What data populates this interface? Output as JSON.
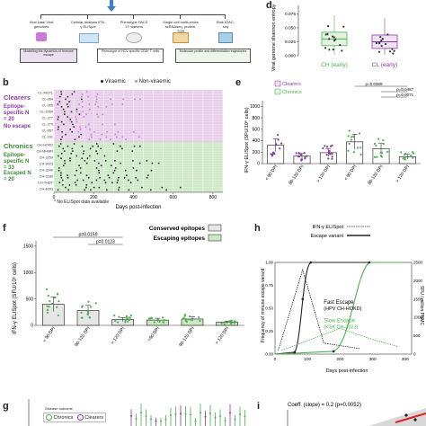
{
  "panel_letters": {
    "b": "b",
    "d": "d",
    "e": "e",
    "f": "f",
    "g": "g",
    "h": "h",
    "i": "i"
  },
  "schematic": {
    "steps": [
      "Viral load/ Viral genomes",
      "Cellular analysis IFN-γ ELISpot",
      "Phenotype FACS 17 markers",
      "Single cell multi-omics scRNAseq, protein, TCR",
      "Bulk ATAC-seq"
    ],
    "boxes": [
      "Modelling the dynamics of Immune escape",
      "Phenotype of HCV-specific CD8+ T cells",
      "Molecular profile and differentiation trajectories"
    ]
  },
  "panel_b": {
    "legend": [
      "Viraemic",
      "Non-viraemic"
    ],
    "groups": {
      "clearers": "Clearers",
      "clearers_spec": "Epitope-specific N = 20",
      "clearers_esc": "No escape",
      "chronics": "Chronics",
      "chronics_spec": "Epitope-specific N = 33",
      "chronics_esc": "Escaped N = 20"
    },
    "cl_rows": [
      "CL-MCPL",
      "CL-064",
      "CL-065",
      "CL-2069",
      "CL-277",
      "CL-279",
      "CL-057",
      "CL-161"
    ],
    "ch_rows": [
      "CH-HOKD",
      "CH-MHMR",
      "CH-3259",
      "CH-3023",
      "CH-3240",
      "CH-3180",
      "CH-THDT",
      "CH-4093"
    ],
    "x_ticks": [
      "0",
      "200",
      "400",
      "600",
      "800"
    ],
    "xlabel": "Days post-infection",
    "footnote": "* No ELISpot data available"
  },
  "colors": {
    "purple": "#8a3aa0",
    "green": "#4caf50",
    "light_green": "#cde8c4",
    "light_purple": "#e7cdea",
    "gray_bar": "#e6e6e6"
  },
  "chart_data": [
    {
      "panel": "d",
      "type": "box",
      "ylabel": "Viral genome shannon entropy",
      "categories": [
        "CH (early)",
        "CL (early)"
      ],
      "y_ticks": [
        "0.000",
        "0.025",
        "0.050",
        "0.075"
      ],
      "ylim": [
        0,
        0.09
      ],
      "medians": [
        0.03,
        0.025
      ]
    },
    {
      "panel": "e",
      "type": "bar",
      "ylabel": "IFN-γ ELISpot (SFU/10⁶ cells)",
      "legend": [
        "Clearers",
        "Chronics"
      ],
      "categories": [
        "< 90 DPI",
        "90-120 DPI",
        "> 120 DPI",
        "< 90 DPI",
        "90-120 DPI",
        "> 120 DPI"
      ],
      "values": [
        320,
        130,
        190,
        380,
        260,
        120
      ],
      "y_ticks": [
        "0",
        "200",
        "400",
        "600",
        "800",
        "1000"
      ],
      "ylim": [
        0,
        1100
      ],
      "pvalues": [
        "p=0.0388",
        "p=0.0487",
        "p=0.0071"
      ]
    },
    {
      "panel": "f",
      "type": "bar",
      "ylabel": "IFN-γ ELISpot (SFU/10⁶ cells)",
      "legend": [
        "Conserved epitopes",
        "Escaping epitopes"
      ],
      "categories": [
        "< 90 DPI",
        "90-120 DPI",
        "> 120 DPI",
        "<90 DPI",
        "90-120 DPI",
        "> 120 DPI"
      ],
      "values": [
        400,
        280,
        110,
        100,
        120,
        60
      ],
      "y_ticks": [
        "0",
        "500",
        "1000",
        "1500"
      ],
      "ylim": [
        0,
        1600
      ],
      "pvalues": [
        "p=0.0159",
        "p=0.0123"
      ]
    },
    {
      "panel": "h",
      "type": "line",
      "legend": [
        "IFN-γ ELISpot",
        "Escape variant"
      ],
      "ylabel": "Frequency of immune escape variant",
      "ylabel_right": "SFU / million PBMC",
      "y_ticks": [
        "0.00",
        "0.25",
        "0.50",
        "0.75",
        "1.00"
      ],
      "y_ticks_right": [
        "0",
        "500",
        "1000",
        "1500",
        "2000",
        "2500"
      ],
      "x_ticks": [
        "0",
        "100",
        "200",
        "300",
        "400"
      ],
      "xlabel": "Days post-infection",
      "annotations": [
        "Fast Escape (HPV CH-HOKD)",
        "Slow Escape (KSK CH-3023)"
      ]
    },
    {
      "panel": "i",
      "type": "scatter",
      "annotation": "Coeff. (slope) = 0.2 (p=0.0052)"
    }
  ],
  "panel_g": {
    "legend_title": "Disease outcome",
    "legend": [
      "Chronics",
      "Clearers"
    ]
  }
}
